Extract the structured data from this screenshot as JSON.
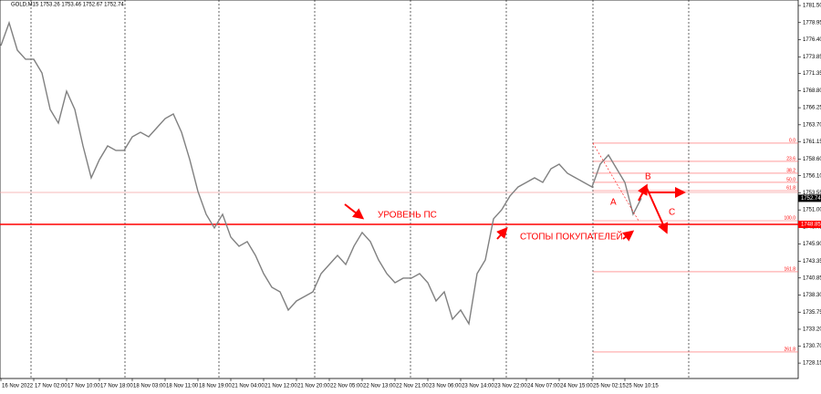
{
  "chart_data": {
    "type": "line",
    "title": "GOLD,M15  1753.26 1753.46 1752.67 1752.74",
    "categories": [
      "16 Nov 2022",
      null,
      null,
      null,
      "17 Nov 02:00",
      null,
      null,
      null,
      "17 Nov 10:00",
      null,
      null,
      null,
      "17 Nov 18:00",
      null,
      null,
      null,
      "18 Nov 03:00",
      null,
      null,
      null,
      "18 Nov 11:00",
      null,
      null,
      null,
      "18 Nov 19:00",
      null,
      null,
      null,
      "21 Nov 04:00",
      null,
      null,
      null,
      "21 Nov 12:00",
      null,
      null,
      null,
      "21 Nov 20:00",
      null,
      null,
      null,
      "22 Nov 05:00",
      null,
      null,
      null,
      "22 Nov 13:00",
      null,
      null,
      null,
      "22 Nov 21:00",
      null,
      null,
      null,
      "23 Nov 06:00",
      null,
      null,
      null,
      "23 Nov 14:00",
      null,
      null,
      null,
      "23 Nov 22:00",
      null,
      null,
      null,
      "24 Nov 07:00",
      null,
      null,
      null,
      "24 Nov 15:00",
      null,
      null,
      null,
      "25 Nov 02:15",
      null,
      null,
      null,
      "25 Nov 10:15",
      null,
      null
    ],
    "values": [
      1775.52,
      1778.92,
      1774.84,
      1773.48,
      1773.48,
      1771.44,
      1765.99,
      1763.95,
      1768.71,
      1765.99,
      1760.55,
      1755.79,
      1758.51,
      1760.55,
      1759.87,
      1759.87,
      1761.91,
      1762.59,
      1761.91,
      1763.27,
      1764.63,
      1765.31,
      1762.59,
      1758.51,
      1753.75,
      1750.35,
      1748.31,
      1750.35,
      1746.95,
      1745.59,
      1746.27,
      1744.22,
      1741.5,
      1739.46,
      1738.78,
      1736.06,
      1737.42,
      1738.1,
      1738.78,
      1741.5,
      1742.86,
      1744.22,
      1742.86,
      1745.59,
      1747.63,
      1746.27,
      1743.54,
      1741.5,
      1740.14,
      1740.82,
      1740.82,
      1741.5,
      1740.14,
      1737.42,
      1738.78,
      1734.7,
      1736.06,
      1734.02,
      1741.5,
      1743.54,
      1749.67,
      1751.03,
      1753.07,
      1754.43,
      1755.11,
      1755.79,
      1755.11,
      1757.15,
      1757.83,
      1756.47,
      1755.79,
      1755.11,
      1754.43,
      1757.83,
      1759.19,
      1757.15,
      1755.11,
      1750.35,
      1752.74
    ],
    "color": "#808080",
    "ylim": [
      1725.85,
      1782.32
    ],
    "yticks": [
      {
        "value": 1781.5,
        "label": "1781.50"
      },
      1778.95,
      {
        "value": 1776.4,
        "label": "1776.40"
      },
      1773.85,
      1771.35,
      {
        "value": 1768.8,
        "label": "1768.80"
      },
      1766.25,
      {
        "value": 1763.7,
        "label": "1763.70"
      },
      1761.15,
      {
        "value": 1758.6,
        "label": "1758.60"
      },
      {
        "value": 1756.1,
        "label": "1756.10"
      },
      1753.55,
      {
        "value": 1751,
        "label": "1751.00"
      },
      1748.45,
      {
        "value": 1745.9,
        "label": "1745.90"
      },
      1743.35,
      1740.85,
      {
        "value": 1738.3,
        "label": "1738.30"
      },
      1735.75,
      {
        "value": 1733.2,
        "label": "1733.20"
      },
      {
        "value": 1730.7,
        "label": "1730.70"
      },
      1728.15
    ],
    "levels": [
      {
        "value": 1748.85,
        "color": "#ff0000"
      },
      {
        "value": 1753.61,
        "color": "#f4a0a0"
      }
    ],
    "price_tags": [
      {
        "value": 1752.74,
        "color": "#000000"
      },
      {
        "value": 1748.85,
        "color": "#ff0000"
      }
    ],
    "fib_levels": [
      {
        "value": 1760.96,
        "label": "0.0"
      },
      {
        "value": 1758.24,
        "label": "23.6"
      },
      {
        "value": 1756.47,
        "label": "38.2"
      },
      {
        "value": 1755.11,
        "label": "50.0"
      },
      {
        "value": 1753.88,
        "label": "61.8"
      },
      {
        "value": 1749.39,
        "label": "100.0"
      },
      {
        "value": 1741.78,
        "label": "161.8"
      },
      {
        "value": 1729.8,
        "label": "261.8"
      }
    ],
    "annotations": [
      "УРОВЕНЬ ПС",
      "СТОПЫ ПОКУПАТЕЛЕЙ",
      "A",
      "B",
      "C"
    ]
  }
}
